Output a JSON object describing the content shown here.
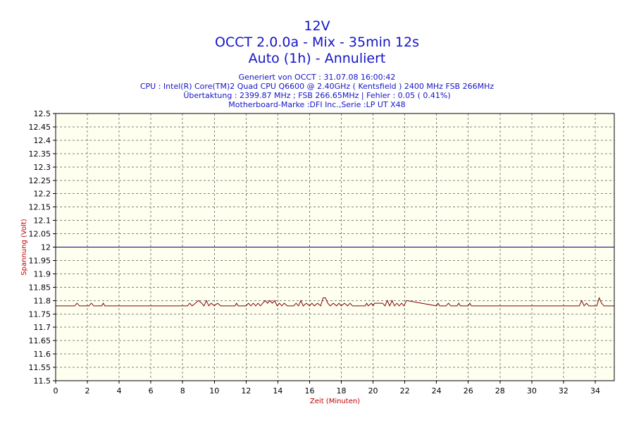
{
  "header": {
    "title": "12V",
    "subtitle": "OCCT 2.0.0a - Mix - 35min 12s",
    "mode": "Auto (1h) - Annuliert",
    "info_lines": [
      "Generiert von OCCT : 31.07.08 16:00:42",
      "CPU : Intel(R) Core(TM)2 Quad CPU Q6600 @ 2.40GHz ( Kentsfield ) 2400 MHz FSB 266MHz",
      "Übertaktung : 2399.87 MHz ; FSB 266.65MHz | Fehler : 0.05 ( 0.41%)",
      "Motherboard-Marke :DFI Inc.,Serie :LP UT X48"
    ]
  },
  "colors": {
    "plot_background": "#fffff0",
    "grid": "#808080",
    "reference_line": "#000080",
    "series_line": "#800000",
    "title_text": "#1414c8",
    "axis_label": "#c00000"
  },
  "chart_data": {
    "type": "line",
    "xlabel": "Zeit (Minuten)",
    "ylabel": "Spannung (Volt)",
    "xlim": [
      0,
      35.2
    ],
    "ylim": [
      11.5,
      12.5
    ],
    "xticks": [
      0,
      2,
      4,
      6,
      8,
      10,
      12,
      14,
      16,
      18,
      20,
      22,
      24,
      26,
      28,
      30,
      32,
      34
    ],
    "xtick_labels": [
      "0",
      "2",
      "4",
      "6",
      "8",
      "10",
      "12",
      "14",
      "16",
      "18",
      "20",
      "22",
      "24",
      "26",
      "28",
      "30",
      "32",
      "34"
    ],
    "yticks": [
      11.5,
      11.55,
      11.6,
      11.65,
      11.7,
      11.75,
      11.8,
      11.85,
      11.9,
      11.95,
      12,
      12.05,
      12.1,
      12.15,
      12.2,
      12.25,
      12.3,
      12.35,
      12.4,
      12.45,
      12.5
    ],
    "ytick_labels": [
      "11.5",
      "11.55",
      "11.6",
      "11.65",
      "11.7",
      "11.75",
      "11.8",
      "11.85",
      "11.9",
      "11.95",
      "12",
      "12.05",
      "12.1",
      "12.15",
      "12.2",
      "12.25",
      "12.3",
      "12.35",
      "12.4",
      "12.45",
      "12.5"
    ],
    "grid": true,
    "reference_line": {
      "y": 12.0
    },
    "series": [
      {
        "x": [
          0,
          1.2,
          1.35,
          1.5,
          2.1,
          2.25,
          2.4,
          2.9,
          3.0,
          3.1,
          8.1,
          8.3,
          8.45,
          8.6,
          8.8,
          9.0,
          9.2,
          9.35,
          9.5,
          9.65,
          9.8,
          10.0,
          10.2,
          10.4,
          10.6,
          11.3,
          11.4,
          11.5,
          12.0,
          12.15,
          12.3,
          12.45,
          12.6,
          12.75,
          12.9,
          13.05,
          13.2,
          13.35,
          13.5,
          13.65,
          13.8,
          13.95,
          14.1,
          14.25,
          14.4,
          14.6,
          15.0,
          15.15,
          15.3,
          15.45,
          15.6,
          15.8,
          16.0,
          16.15,
          16.3,
          16.5,
          16.7,
          16.85,
          17.0,
          17.15,
          17.3,
          17.5,
          17.7,
          17.85,
          18.0,
          18.2,
          18.4,
          18.55,
          18.7,
          19.5,
          19.6,
          19.7,
          19.9,
          20.0,
          20.1,
          20.6,
          20.75,
          20.9,
          21.05,
          21.2,
          21.35,
          21.5,
          21.65,
          21.8,
          21.95,
          22.1,
          24.0,
          24.1,
          24.2,
          24.6,
          24.75,
          24.9,
          25.3,
          25.4,
          25.5,
          26.0,
          26.1,
          26.2,
          33.0,
          33.15,
          33.3,
          33.45,
          33.6,
          34.1,
          34.25,
          34.4,
          34.55,
          35.2
        ],
        "values": [
          11.78,
          11.78,
          11.79,
          11.78,
          11.78,
          11.79,
          11.78,
          11.78,
          11.79,
          11.78,
          11.78,
          11.78,
          11.79,
          11.78,
          11.79,
          11.8,
          11.79,
          11.78,
          11.8,
          11.78,
          11.79,
          11.78,
          11.79,
          11.78,
          11.78,
          11.78,
          11.79,
          11.78,
          11.78,
          11.79,
          11.78,
          11.79,
          11.78,
          11.79,
          11.78,
          11.79,
          11.8,
          11.79,
          11.8,
          11.79,
          11.8,
          11.78,
          11.79,
          11.78,
          11.79,
          11.78,
          11.78,
          11.79,
          11.78,
          11.8,
          11.78,
          11.79,
          11.78,
          11.79,
          11.78,
          11.79,
          11.78,
          11.81,
          11.81,
          11.79,
          11.78,
          11.79,
          11.78,
          11.79,
          11.78,
          11.79,
          11.78,
          11.79,
          11.78,
          11.78,
          11.79,
          11.78,
          11.79,
          11.78,
          11.79,
          11.79,
          11.78,
          11.8,
          11.78,
          11.8,
          11.78,
          11.79,
          11.78,
          11.79,
          11.78,
          11.8,
          11.78,
          11.79,
          11.78,
          11.78,
          11.79,
          11.78,
          11.78,
          11.79,
          11.78,
          11.78,
          11.79,
          11.78,
          11.78,
          11.8,
          11.78,
          11.79,
          11.78,
          11.78,
          11.81,
          11.79,
          11.78,
          11.78
        ]
      }
    ]
  }
}
